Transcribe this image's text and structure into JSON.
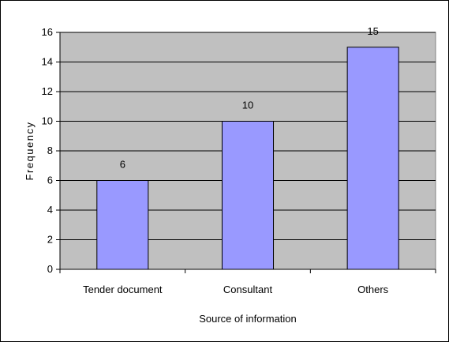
{
  "chart_data": {
    "type": "bar",
    "categories": [
      "Tender document",
      "Consultant",
      "Others"
    ],
    "values": [
      6,
      10,
      15
    ],
    "data_labels": [
      "6",
      "10",
      "15"
    ],
    "title": "",
    "xlabel": "Source of information",
    "ylabel": "Frequency",
    "ylim": [
      0,
      16
    ],
    "yticks": [
      0,
      2,
      4,
      6,
      8,
      10,
      12,
      14,
      16
    ],
    "grid": true,
    "legend": "none",
    "colors": {
      "bar_fill": "#9999ff",
      "bar_stroke": "#000000",
      "plot_bg": "#c0c0c0",
      "grid": "#000000"
    }
  }
}
